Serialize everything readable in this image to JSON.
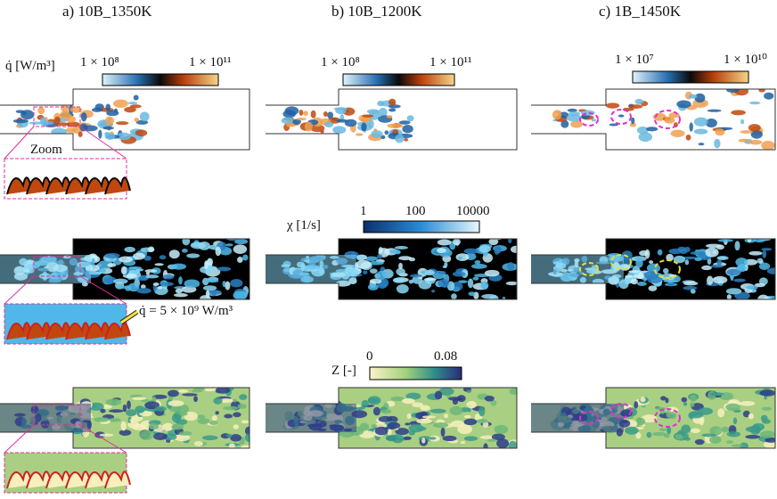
{
  "panels": [
    {
      "title": "a)   10B_1350K"
    },
    {
      "title": "b)   10B_1200K"
    },
    {
      "title": "c)   1B_1450K"
    }
  ],
  "colorbars": {
    "heat_release": {
      "label": "q̇ [W/m³]",
      "ticks_10B": [
        "1 × 10⁸",
        "1 × 10¹¹"
      ],
      "ticks_1B": [
        "1 × 10⁷",
        "1 × 10¹⁰"
      ]
    },
    "dissipation": {
      "label": "χ [1/s]",
      "ticks": [
        "1",
        "100",
        "10000"
      ]
    },
    "mixture_fraction": {
      "label": "Z [-]",
      "ticks": [
        "0",
        "0.08"
      ]
    }
  },
  "annotations": {
    "zoom": "Zoom",
    "isoline": "q̇ = 5 × 10⁹ W/m³"
  }
}
